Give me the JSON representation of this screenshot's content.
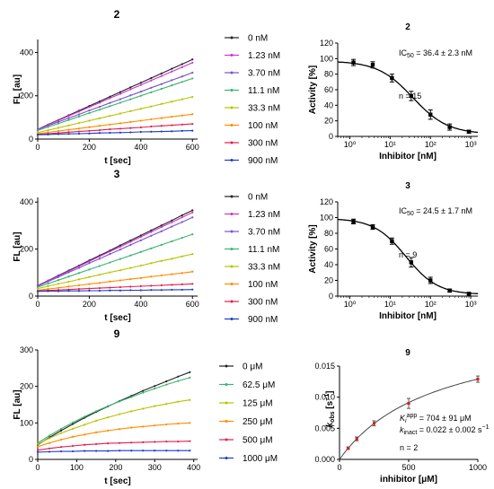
{
  "chart_data": [
    {
      "id": "k2",
      "type": "line",
      "title": "2",
      "xlabel": "t [sec]",
      "ylabel": "FL [au]",
      "xlim": [
        0,
        620
      ],
      "ylim": [
        0,
        460
      ],
      "xticks": [
        0,
        200,
        400,
        600
      ],
      "yticks": [
        0,
        200,
        400
      ],
      "x": [
        0,
        40,
        80,
        120,
        160,
        200,
        240,
        280,
        320,
        360,
        400,
        440,
        480,
        520,
        560,
        600
      ],
      "legend": "right",
      "series": [
        {
          "name": "0 nM",
          "color": "#222222",
          "values": [
            45,
            67,
            88,
            110,
            131,
            153,
            174,
            196,
            217,
            239,
            260,
            282,
            303,
            325,
            346,
            368
          ]
        },
        {
          "name": "1.23 nM",
          "color": "#cc33cc",
          "values": [
            45,
            66,
            86,
            107,
            127,
            148,
            168,
            189,
            209,
            230,
            250,
            271,
            291,
            312,
            332,
            353
          ]
        },
        {
          "name": "3.70 nM",
          "color": "#7b52cc",
          "values": [
            44,
            62,
            79,
            97,
            114,
            132,
            149,
            167,
            184,
            202,
            219,
            237,
            254,
            272,
            289,
            307
          ]
        },
        {
          "name": "11.1 nM",
          "color": "#3cb371",
          "values": [
            40,
            56,
            72,
            88,
            104,
            120,
            136,
            152,
            168,
            184,
            200,
            216,
            232,
            248,
            264,
            280
          ]
        },
        {
          "name": "33.3 nM",
          "color": "#b5c400",
          "values": [
            30,
            41,
            52,
            63,
            74,
            85,
            96,
            107,
            118,
            129,
            140,
            151,
            162,
            173,
            184,
            195
          ]
        },
        {
          "name": "100 nM",
          "color": "#ff8c00",
          "values": [
            25,
            31,
            37,
            43,
            49,
            55,
            61,
            67,
            73,
            79,
            85,
            91,
            97,
            103,
            109,
            115
          ]
        },
        {
          "name": "300 nM",
          "color": "#e0204f",
          "values": [
            22,
            25,
            28,
            32,
            35,
            38,
            41,
            45,
            48,
            51,
            54,
            58,
            61,
            64,
            67,
            70
          ]
        },
        {
          "name": "900 nM",
          "color": "#1a3cc8",
          "values": [
            20,
            21,
            23,
            24,
            25,
            26,
            28,
            29,
            30,
            31,
            33,
            34,
            35,
            36,
            38,
            39
          ]
        }
      ]
    },
    {
      "id": "d2",
      "type": "scatter",
      "title": "2",
      "xlabel": "Inhibitor [nM]",
      "ylabel": "Activity [%]",
      "xscale": "log",
      "xlim": [
        0.5,
        1500
      ],
      "ylim": [
        0,
        120
      ],
      "xticks": [
        1,
        10,
        100,
        1000
      ],
      "xtick_labels": [
        "10⁰",
        "10¹",
        "10²",
        "10³"
      ],
      "yticks": [
        0,
        20,
        40,
        60,
        80,
        100,
        120
      ],
      "x": [
        1.23,
        3.7,
        11.1,
        33.3,
        100,
        300,
        900
      ],
      "values": [
        95,
        92,
        75,
        52,
        28,
        12,
        6
      ],
      "errors": [
        4,
        4,
        5,
        6,
        6,
        4,
        2
      ],
      "fit": {
        "ic50": 36.4,
        "hill": 1.0,
        "top": 97,
        "bottom": 3
      },
      "annotations": [
        "IC50 = 36.4 ± 2.3 nM",
        "n = 15"
      ]
    },
    {
      "id": "k3",
      "type": "line",
      "title": "3",
      "xlabel": "t [sec]",
      "ylabel": "FL [au]",
      "xlim": [
        0,
        620
      ],
      "ylim": [
        0,
        420
      ],
      "xticks": [
        0,
        200,
        400,
        600
      ],
      "yticks": [
        0,
        200,
        400
      ],
      "x": [
        0,
        40,
        80,
        120,
        160,
        200,
        240,
        280,
        320,
        360,
        400,
        440,
        480,
        520,
        560,
        600
      ],
      "legend": "right",
      "series": [
        {
          "name": "0 nM",
          "color": "#222222",
          "values": [
            45,
            66,
            88,
            109,
            130,
            152,
            173,
            194,
            216,
            237,
            258,
            280,
            301,
            322,
            344,
            365
          ]
        },
        {
          "name": "1.23 nM",
          "color": "#cc33cc",
          "values": [
            44,
            65,
            86,
            106,
            127,
            148,
            169,
            190,
            210,
            231,
            252,
            273,
            294,
            314,
            335,
            356
          ]
        },
        {
          "name": "3.70 nM",
          "color": "#7b52cc",
          "values": [
            42,
            62,
            81,
            101,
            120,
            140,
            159,
            179,
            198,
            218,
            237,
            257,
            276,
            296,
            315,
            335
          ]
        },
        {
          "name": "11.1 nM",
          "color": "#3cb371",
          "values": [
            38,
            53,
            68,
            83,
            98,
            113,
            128,
            143,
            158,
            173,
            188,
            203,
            218,
            233,
            248,
            263
          ]
        },
        {
          "name": "33.3 nM",
          "color": "#b5c400",
          "values": [
            32,
            42,
            52,
            61,
            71,
            81,
            91,
            101,
            110,
            120,
            130,
            140,
            150,
            159,
            169,
            179
          ]
        },
        {
          "name": "100 nM",
          "color": "#ff8c00",
          "values": [
            25,
            30,
            35,
            41,
            46,
            51,
            56,
            62,
            67,
            72,
            77,
            83,
            88,
            93,
            98,
            104
          ]
        },
        {
          "name": "300 nM",
          "color": "#e0204f",
          "values": [
            22,
            24,
            26,
            28,
            30,
            32,
            34,
            36,
            38,
            40,
            42,
            44,
            46,
            48,
            50,
            52
          ]
        },
        {
          "name": "900 nM",
          "color": "#1a3cc8",
          "values": [
            20,
            21,
            21,
            22,
            22,
            23,
            23,
            24,
            24,
            25,
            25,
            26,
            26,
            27,
            27,
            28
          ]
        }
      ]
    },
    {
      "id": "d3",
      "type": "scatter",
      "title": "3",
      "xlabel": "Inhibitor [nM]",
      "ylabel": "Activity [%]",
      "xscale": "log",
      "xlim": [
        0.5,
        1500
      ],
      "ylim": [
        0,
        120
      ],
      "xticks": [
        1,
        10,
        100,
        1000
      ],
      "xtick_labels": [
        "10⁰",
        "10¹",
        "10²",
        "10³"
      ],
      "yticks": [
        0,
        20,
        40,
        60,
        80,
        100,
        120
      ],
      "x": [
        1.23,
        3.7,
        11.1,
        33.3,
        100,
        300,
        900
      ],
      "values": [
        95,
        88,
        70,
        43,
        20,
        7,
        3
      ],
      "errors": [
        3,
        3,
        4,
        6,
        4,
        2,
        1
      ],
      "fit": {
        "ic50": 24.5,
        "hill": 1.1,
        "top": 99,
        "bottom": 2
      },
      "annotations": [
        "IC50 = 24.5 ± 1.7 nM",
        "n = 9"
      ]
    },
    {
      "id": "k9",
      "type": "line",
      "title": "9",
      "xlabel": "t [sec]",
      "ylabel": "FL [au]",
      "xlim": [
        0,
        410
      ],
      "ylim": [
        0,
        300
      ],
      "xticks": [
        0,
        100,
        200,
        300,
        400
      ],
      "yticks": [
        0,
        100,
        200,
        300
      ],
      "x": [
        0,
        30,
        60,
        90,
        120,
        150,
        180,
        210,
        240,
        270,
        300,
        330,
        360,
        390
      ],
      "legend": "right",
      "series": [
        {
          "name": "0 μM",
          "color": "#222222",
          "values": [
            40,
            60,
            79,
            97,
            114,
            130,
            145,
            160,
            174,
            188,
            201,
            214,
            227,
            239
          ]
        },
        {
          "name": "62.5 μM",
          "color": "#3cb371",
          "values": [
            45,
            65,
            84,
            101,
            117,
            132,
            146,
            159,
            171,
            183,
            194,
            205,
            215,
            224
          ]
        },
        {
          "name": "125 μM",
          "color": "#b5c400",
          "values": [
            42,
            58,
            72,
            84,
            95,
            106,
            115,
            124,
            132,
            139,
            146,
            152,
            158,
            163
          ]
        },
        {
          "name": "250 μM",
          "color": "#ff8c00",
          "values": [
            35,
            45,
            54,
            62,
            68,
            74,
            79,
            83,
            87,
            90,
            93,
            96,
            98,
            100
          ]
        },
        {
          "name": "500 μM",
          "color": "#e0204f",
          "values": [
            25,
            30,
            34,
            37,
            40,
            42,
            44,
            45,
            46,
            47,
            48,
            49,
            49,
            50
          ]
        },
        {
          "name": "1000 μM",
          "color": "#1a3cc8",
          "values": [
            20,
            21,
            22,
            22,
            23,
            23,
            23,
            24,
            24,
            24,
            24,
            24,
            24,
            24
          ]
        }
      ]
    },
    {
      "id": "kobs9",
      "type": "scatter",
      "title": "9",
      "xlabel": "inhibitor [μM]",
      "ylabel": "kobs [s⁻¹]",
      "xlim": [
        0,
        1000
      ],
      "ylim": [
        0,
        0.015
      ],
      "xticks": [
        0,
        500,
        1000
      ],
      "xtick_labels": [
        "0",
        "500",
        "1000"
      ],
      "yticks": [
        0,
        0.005,
        0.01,
        0.015
      ],
      "ytick_labels": [
        "0.000",
        "0.005",
        "0.010",
        "0.015"
      ],
      "x": [
        62.5,
        125,
        250,
        500,
        1000
      ],
      "values": [
        0.0018,
        0.0033,
        0.0058,
        0.009,
        0.0129
      ],
      "errors": [
        0.0002,
        0.0003,
        0.0004,
        0.0008,
        0.0005
      ],
      "fit": {
        "ki": 704,
        "kinact": 0.022
      },
      "annotations": [
        "Ki app = 704 ± 91 μM",
        "kinact = 0.022 ± 0.002 s⁻¹",
        "n = 2"
      ]
    }
  ],
  "texts": {
    "ic50_2": "IC",
    "ic50_2_sub": "50",
    "ic50_2_val": " = 36.4 ± 2.3 nM",
    "n_2": "n = 15",
    "ic50_3": "IC",
    "ic50_3_sub": "50",
    "ic50_3_val": " = 24.5 ± 1.7 nM",
    "n_3": "n = 9",
    "ki_k": "K",
    "ki_sub": "i",
    "ki_sup": "app",
    "ki_val": " = 704 ± 91 μM",
    "kin_k": "k",
    "kin_sub": "inact",
    "kin_val": " = 0.022 ± 0.002 s",
    "kin_sup": "−1",
    "n_9": "n = 2",
    "kobs_ylabel_k": "k",
    "kobs_ylabel_sub": "obs",
    "kobs_ylabel_unit": " [s",
    "kobs_ylabel_sup": "−1",
    "kobs_ylabel_end": "]"
  }
}
